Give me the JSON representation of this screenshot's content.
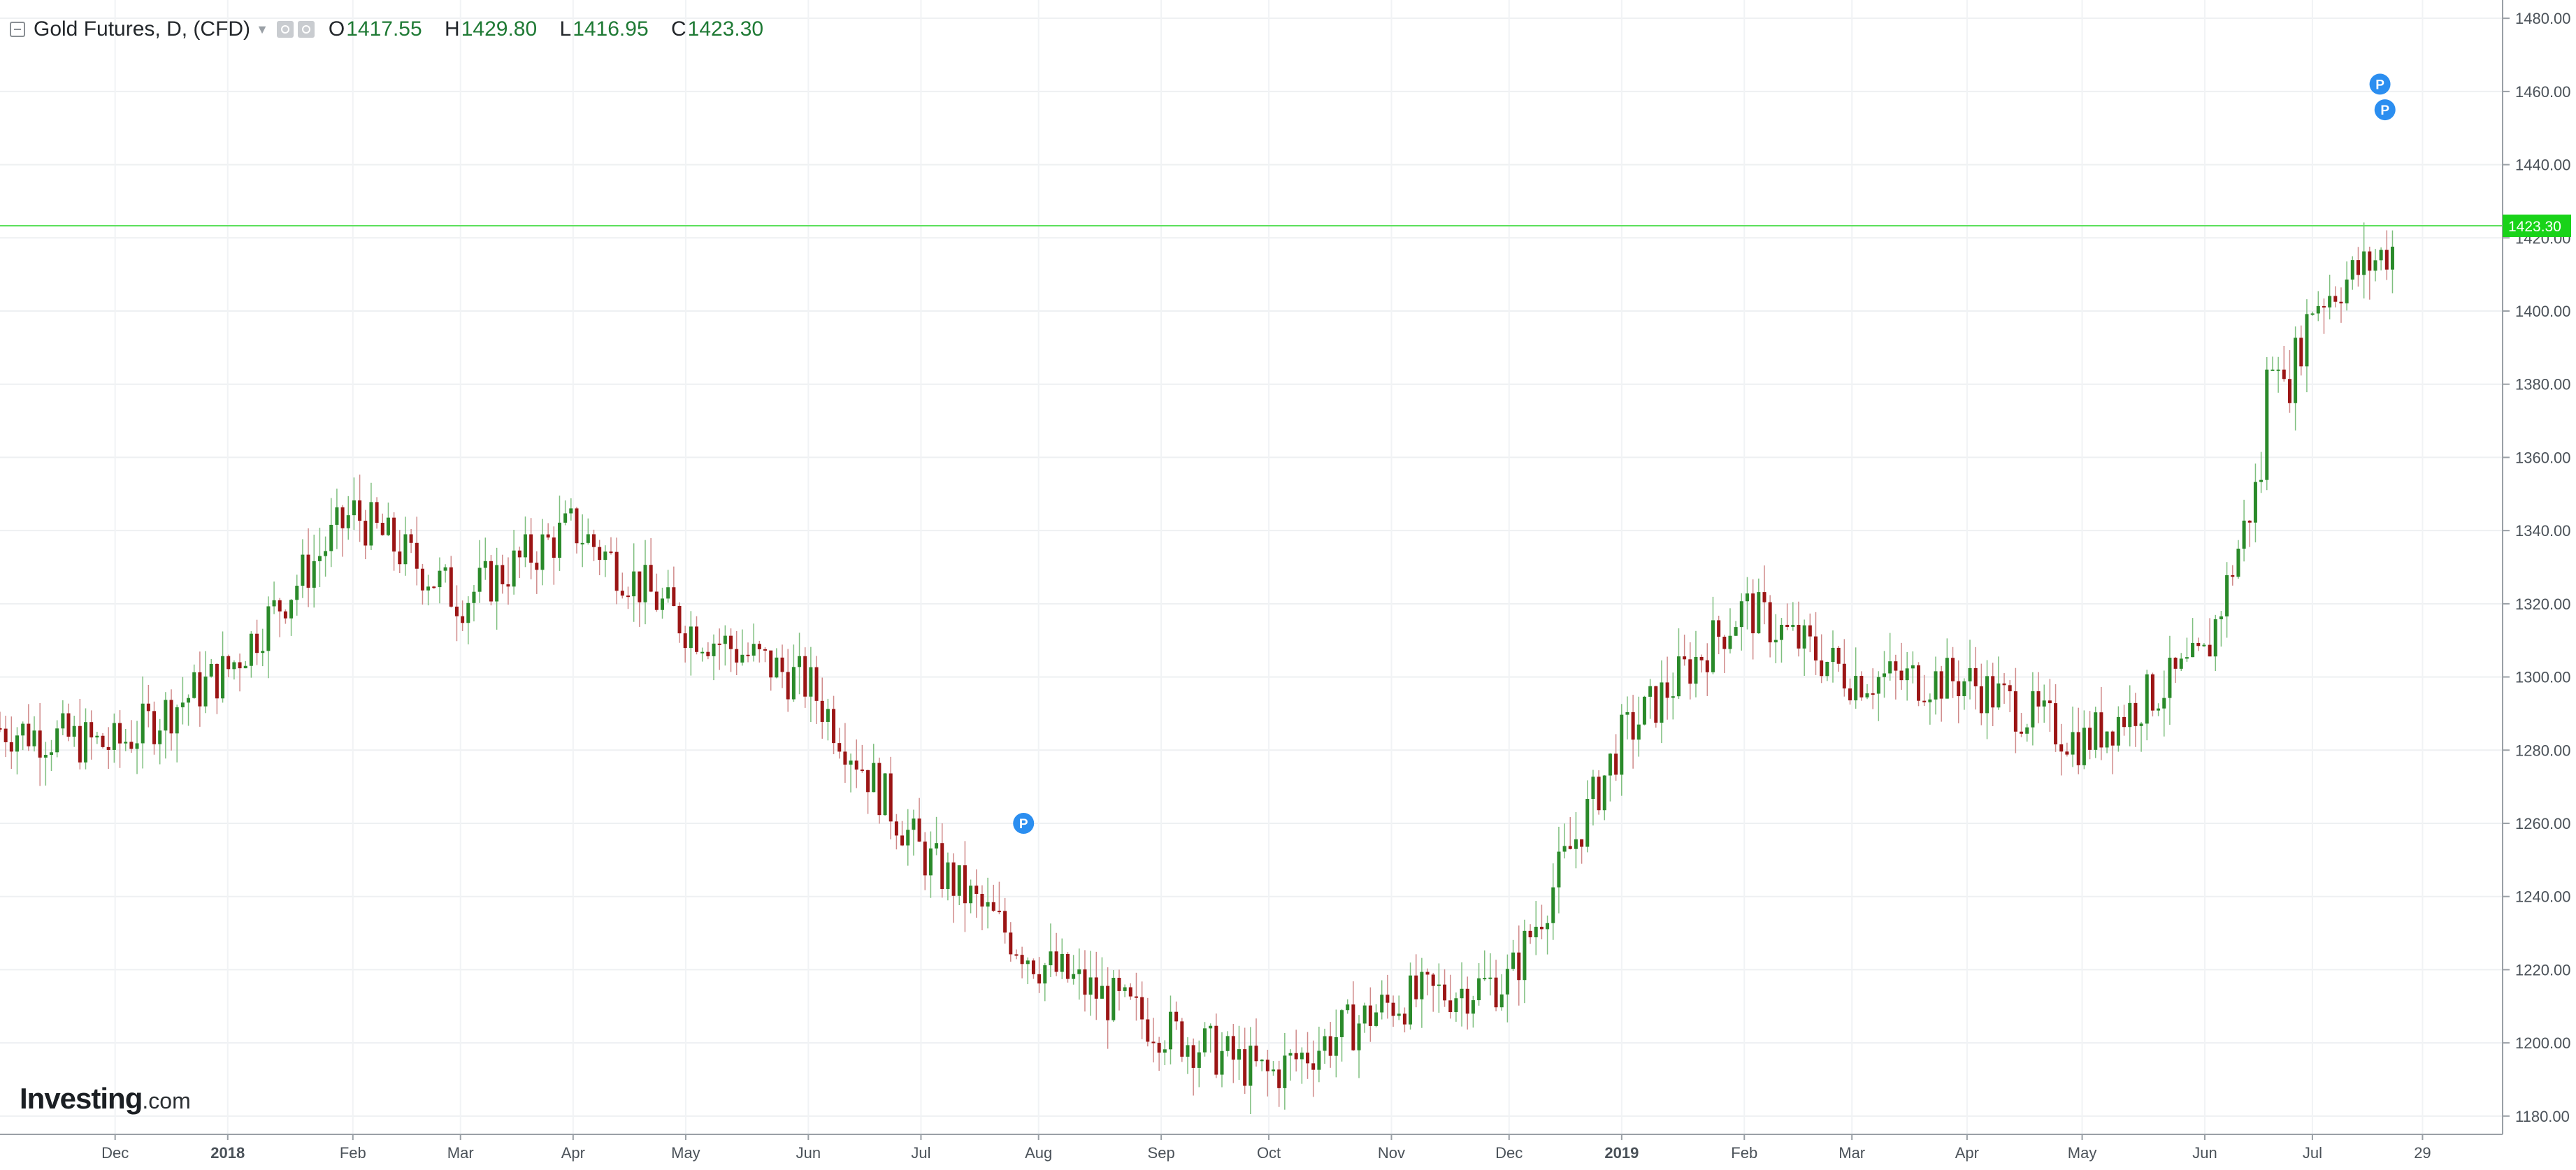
{
  "header": {
    "title": "Gold Futures, D, (CFD)",
    "open_label": "O",
    "open": "1417.55",
    "high_label": "H",
    "high": "1429.80",
    "low_label": "L",
    "low": "1416.95",
    "close_label": "C",
    "close": "1423.30"
  },
  "logo": {
    "brand": "Investing",
    "suffix": ".com"
  },
  "price_tag": "1423.30",
  "colors": {
    "up": "#2a8a2a",
    "down": "#9b1515",
    "price_line": "#5ce05c",
    "price_tag": "#19d319",
    "marker": "#2b8ef0"
  },
  "chart_data": {
    "type": "candlestick",
    "title": "Gold Futures, D, (CFD)",
    "xlabel": "",
    "ylabel": "",
    "ylim": [
      1175,
      1485
    ],
    "y_ticks": [
      "1180.00",
      "1200.00",
      "1220.00",
      "1240.00",
      "1260.00",
      "1280.00",
      "1300.00",
      "1320.00",
      "1340.00",
      "1360.00",
      "1380.00",
      "1400.00",
      "1420.00",
      "1440.00",
      "1460.00",
      "1480.00"
    ],
    "x_ticks": [
      {
        "label": "Dec",
        "t": 0.046
      },
      {
        "label": "2018",
        "t": 0.091
      },
      {
        "label": "Feb",
        "t": 0.141
      },
      {
        "label": "Mar",
        "t": 0.184
      },
      {
        "label": "Apr",
        "t": 0.229
      },
      {
        "label": "May",
        "t": 0.274
      },
      {
        "label": "Jun",
        "t": 0.323
      },
      {
        "label": "Jul",
        "t": 0.368
      },
      {
        "label": "Aug",
        "t": 0.415
      },
      {
        "label": "Sep",
        "t": 0.464
      },
      {
        "label": "Oct",
        "t": 0.507
      },
      {
        "label": "Nov",
        "t": 0.556
      },
      {
        "label": "Dec",
        "t": 0.603
      },
      {
        "label": "2019",
        "t": 0.648
      },
      {
        "label": "Feb",
        "t": 0.697
      },
      {
        "label": "Mar",
        "t": 0.74
      },
      {
        "label": "Apr",
        "t": 0.786
      },
      {
        "label": "May",
        "t": 0.832
      },
      {
        "label": "Jun",
        "t": 0.881
      },
      {
        "label": "Jul",
        "t": 0.924
      },
      {
        "label": "29",
        "t": 0.968
      }
    ],
    "bold_tick_labels": [
      "2018",
      "2019"
    ],
    "last_close": 1423.3,
    "series": [
      {
        "phase": "Nov",
        "t": 0.0,
        "price": 1286
      },
      {
        "phase": "Dec",
        "t": 0.046,
        "price": 1281
      },
      {
        "phase": "2018",
        "t": 0.091,
        "price": 1302
      },
      {
        "phase": "Feb",
        "t": 0.141,
        "price": 1345
      },
      {
        "phase": "Mar",
        "t": 0.184,
        "price": 1321
      },
      {
        "phase": "Apr",
        "t": 0.229,
        "price": 1341
      },
      {
        "phase": "May",
        "t": 0.274,
        "price": 1314
      },
      {
        "phase": "Jun",
        "t": 0.323,
        "price": 1298
      },
      {
        "phase": "Jul",
        "t": 0.368,
        "price": 1252
      },
      {
        "phase": "Aug",
        "t": 0.415,
        "price": 1222
      },
      {
        "phase": "Sep",
        "t": 0.464,
        "price": 1204
      },
      {
        "phase": "Oct",
        "t": 0.507,
        "price": 1191
      },
      {
        "phase": "Nov",
        "t": 0.556,
        "price": 1211
      },
      {
        "phase": "Dec",
        "t": 0.603,
        "price": 1217
      },
      {
        "phase": "2019",
        "t": 0.648,
        "price": 1283
      },
      {
        "phase": "Feb",
        "t": 0.697,
        "price": 1319
      },
      {
        "phase": "Mar",
        "t": 0.74,
        "price": 1300
      },
      {
        "phase": "Apr",
        "t": 0.786,
        "price": 1299
      },
      {
        "phase": "May",
        "t": 0.832,
        "price": 1282
      },
      {
        "phase": "Jun",
        "t": 0.881,
        "price": 1305
      },
      {
        "phase": "Jul",
        "t": 0.924,
        "price": 1402
      },
      {
        "phase": "end",
        "t": 0.968,
        "price": 1423
      }
    ],
    "price_line": 1423.3,
    "markers": [
      {
        "label": "P",
        "t": 0.409,
        "price": 1260
      },
      {
        "label": "P",
        "t": 0.951,
        "price": 1462
      },
      {
        "label": "P",
        "t": 0.953,
        "price": 1455
      }
    ]
  }
}
